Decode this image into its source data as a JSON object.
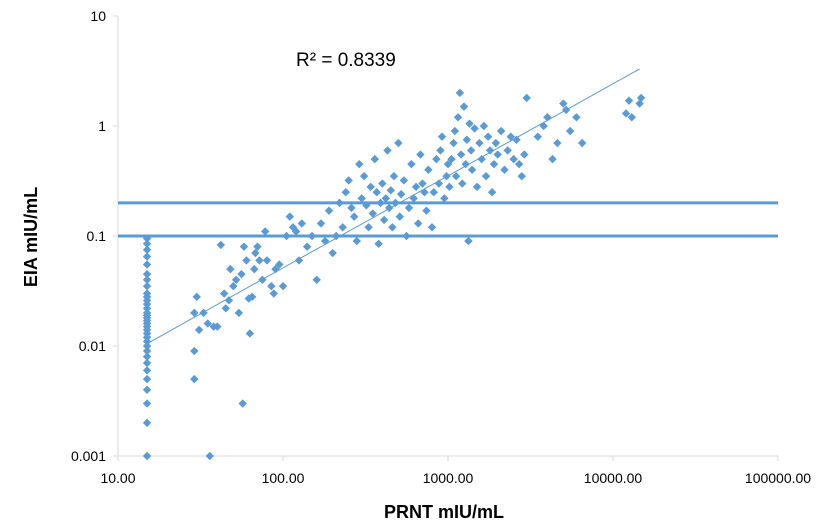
{
  "chart_data": {
    "type": "scatter",
    "xlabel": "PRNT mIU/mL",
    "ylabel": "EIA  mIU/mL",
    "x_scale": "log",
    "y_scale": "log",
    "xlim": [
      10,
      100000
    ],
    "ylim": [
      0.001,
      10
    ],
    "x_ticks": [
      10,
      100,
      1000,
      10000,
      100000
    ],
    "x_tick_labels": [
      "10.00",
      "100.00",
      "1000.00",
      "10000.00",
      "100000.00"
    ],
    "y_ticks": [
      0.001,
      0.01,
      0.1,
      1,
      10
    ],
    "y_tick_labels": [
      "0.001",
      "0.01",
      "0.1",
      "1",
      "10"
    ],
    "grid": false,
    "annotation": "R² = 0.8339",
    "marker_color": "#5b9bd5",
    "trendline": {
      "x": [
        15,
        14500
      ],
      "y": [
        0.0105,
        3.3
      ]
    },
    "reference_lines": [
      0.1,
      0.2
    ],
    "points": [
      [
        15,
        0.001
      ],
      [
        15,
        0.002
      ],
      [
        15,
        0.003
      ],
      [
        15,
        0.004
      ],
      [
        15,
        0.005
      ],
      [
        15,
        0.006
      ],
      [
        15,
        0.007
      ],
      [
        15,
        0.008
      ],
      [
        15,
        0.009
      ],
      [
        15,
        0.01
      ],
      [
        15,
        0.011
      ],
      [
        15,
        0.012
      ],
      [
        15,
        0.013
      ],
      [
        15,
        0.014
      ],
      [
        15,
        0.015
      ],
      [
        15,
        0.016
      ],
      [
        15,
        0.017
      ],
      [
        15,
        0.018
      ],
      [
        15,
        0.019
      ],
      [
        15,
        0.02
      ],
      [
        15,
        0.022
      ],
      [
        15,
        0.024
      ],
      [
        15,
        0.026
      ],
      [
        15,
        0.028
      ],
      [
        15,
        0.03
      ],
      [
        15,
        0.035
      ],
      [
        15,
        0.04
      ],
      [
        15,
        0.045
      ],
      [
        15,
        0.055
      ],
      [
        15,
        0.065
      ],
      [
        15,
        0.075
      ],
      [
        15,
        0.085
      ],
      [
        15,
        0.095
      ],
      [
        29,
        0.005
      ],
      [
        29,
        0.009
      ],
      [
        29,
        0.02
      ],
      [
        30,
        0.028
      ],
      [
        31,
        0.014
      ],
      [
        33,
        0.02
      ],
      [
        35,
        0.016
      ],
      [
        36,
        0.001
      ],
      [
        38,
        0.015
      ],
      [
        40,
        0.015
      ],
      [
        42,
        0.083
      ],
      [
        44,
        0.03
      ],
      [
        45,
        0.022
      ],
      [
        47,
        0.026
      ],
      [
        48,
        0.05
      ],
      [
        50,
        0.035
      ],
      [
        52,
        0.04
      ],
      [
        54,
        0.02
      ],
      [
        56,
        0.045
      ],
      [
        57,
        0.003
      ],
      [
        58,
        0.08
      ],
      [
        60,
        0.06
      ],
      [
        62,
        0.027
      ],
      [
        63,
        0.013
      ],
      [
        65,
        0.028
      ],
      [
        67,
        0.05
      ],
      [
        68,
        0.07
      ],
      [
        70,
        0.08
      ],
      [
        72,
        0.06
      ],
      [
        75,
        0.04
      ],
      [
        78,
        0.11
      ],
      [
        80,
        0.06
      ],
      [
        85,
        0.035
      ],
      [
        88,
        0.03
      ],
      [
        90,
        0.05
      ],
      [
        95,
        0.055
      ],
      [
        100,
        0.035
      ],
      [
        105,
        0.1
      ],
      [
        110,
        0.15
      ],
      [
        115,
        0.12
      ],
      [
        120,
        0.11
      ],
      [
        125,
        0.06
      ],
      [
        130,
        0.13
      ],
      [
        140,
        0.08
      ],
      [
        150,
        0.1
      ],
      [
        160,
        0.04
      ],
      [
        170,
        0.13
      ],
      [
        180,
        0.09
      ],
      [
        190,
        0.17
      ],
      [
        200,
        0.07
      ],
      [
        210,
        0.1
      ],
      [
        220,
        0.2
      ],
      [
        230,
        0.12
      ],
      [
        240,
        0.25
      ],
      [
        250,
        0.32
      ],
      [
        260,
        0.18
      ],
      [
        270,
        0.15
      ],
      [
        280,
        0.09
      ],
      [
        290,
        0.45
      ],
      [
        300,
        0.22
      ],
      [
        310,
        0.35
      ],
      [
        320,
        0.19
      ],
      [
        330,
        0.12
      ],
      [
        340,
        0.28
      ],
      [
        350,
        0.16
      ],
      [
        360,
        0.5
      ],
      [
        370,
        0.25
      ],
      [
        380,
        0.085
      ],
      [
        390,
        0.2
      ],
      [
        400,
        0.3
      ],
      [
        410,
        0.14
      ],
      [
        420,
        0.22
      ],
      [
        430,
        0.6
      ],
      [
        440,
        0.18
      ],
      [
        450,
        0.26
      ],
      [
        460,
        0.12
      ],
      [
        470,
        0.35
      ],
      [
        480,
        0.2
      ],
      [
        500,
        0.7
      ],
      [
        510,
        0.15
      ],
      [
        520,
        0.24
      ],
      [
        540,
        0.32
      ],
      [
        560,
        0.1
      ],
      [
        580,
        0.18
      ],
      [
        600,
        0.45
      ],
      [
        620,
        0.22
      ],
      [
        640,
        0.28
      ],
      [
        660,
        0.13
      ],
      [
        680,
        0.55
      ],
      [
        700,
        0.3
      ],
      [
        720,
        0.25
      ],
      [
        740,
        0.17
      ],
      [
        760,
        0.4
      ],
      [
        800,
        0.12
      ],
      [
        820,
        0.25
      ],
      [
        850,
        0.5
      ],
      [
        880,
        0.3
      ],
      [
        900,
        0.6
      ],
      [
        920,
        0.8
      ],
      [
        950,
        0.22
      ],
      [
        980,
        0.35
      ],
      [
        1000,
        0.45
      ],
      [
        1020,
        0.28
      ],
      [
        1050,
        0.5
      ],
      [
        1080,
        0.7
      ],
      [
        1100,
        0.9
      ],
      [
        1120,
        0.35
      ],
      [
        1150,
        1.2
      ],
      [
        1180,
        2.0
      ],
      [
        1200,
        0.55
      ],
      [
        1220,
        0.3
      ],
      [
        1250,
        1.5
      ],
      [
        1280,
        0.45
      ],
      [
        1300,
        0.75
      ],
      [
        1330,
        0.09
      ],
      [
        1350,
        1.05
      ],
      [
        1380,
        0.6
      ],
      [
        1400,
        0.4
      ],
      [
        1450,
        0.95
      ],
      [
        1500,
        0.28
      ],
      [
        1550,
        0.7
      ],
      [
        1600,
        0.5
      ],
      [
        1650,
        1.0
      ],
      [
        1700,
        0.35
      ],
      [
        1750,
        0.8
      ],
      [
        1800,
        0.6
      ],
      [
        1850,
        0.25
      ],
      [
        1900,
        0.45
      ],
      [
        1950,
        0.7
      ],
      [
        2000,
        0.55
      ],
      [
        2100,
        0.9
      ],
      [
        2200,
        0.4
      ],
      [
        2300,
        0.6
      ],
      [
        2400,
        0.8
      ],
      [
        2500,
        0.5
      ],
      [
        2600,
        0.75
      ],
      [
        2700,
        0.45
      ],
      [
        2800,
        0.35
      ],
      [
        2900,
        0.55
      ],
      [
        3000,
        1.8
      ],
      [
        3500,
        0.8
      ],
      [
        3800,
        1.0
      ],
      [
        4000,
        1.2
      ],
      [
        4300,
        0.5
      ],
      [
        4600,
        0.7
      ],
      [
        5000,
        1.6
      ],
      [
        5200,
        1.4
      ],
      [
        5500,
        0.9
      ],
      [
        6000,
        1.2
      ],
      [
        6500,
        0.7
      ],
      [
        12000,
        1.3
      ],
      [
        12500,
        1.7
      ],
      [
        13000,
        1.2
      ],
      [
        14500,
        1.6
      ],
      [
        14800,
        1.8
      ]
    ]
  }
}
